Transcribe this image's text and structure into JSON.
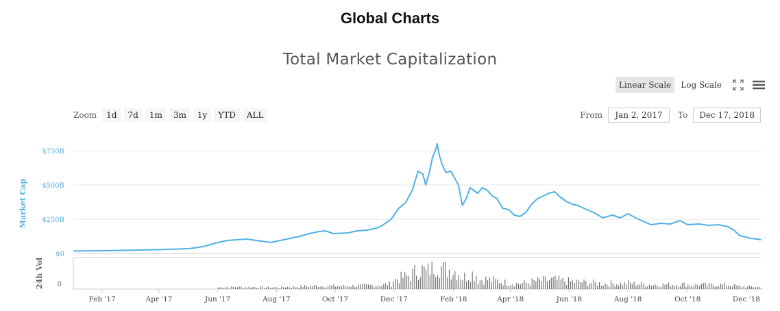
{
  "page": {
    "title": "Global Charts"
  },
  "controls": {
    "scale_buttons": [
      "Linear Scale",
      "Log Scale"
    ],
    "zoom_label": "Zoom",
    "zoom_buttons": [
      "1d",
      "7d",
      "1m",
      "3m",
      "1y",
      "YTD",
      "ALL"
    ],
    "from_label": "From",
    "from_value": "Jan 2, 2017",
    "to_label": "To",
    "to_value": "Dec 17, 2018"
  },
  "colors": {
    "series": "#4fb0e4",
    "volume": "#666666",
    "grid": "#e6e6e6"
  },
  "chart_data": {
    "type": "line",
    "title": "Total Market Capitalization",
    "ylabel": "Market Cap",
    "y_ticks": [
      "$750B",
      "$500B",
      "$250B",
      "$0"
    ],
    "y_tick_values": [
      750,
      500,
      250,
      0
    ],
    "ylim": [
      0,
      850
    ],
    "x_ticks": [
      "Feb '17",
      "Apr '17",
      "Jun '17",
      "Aug '17",
      "Oct '17",
      "Dec '17",
      "Feb '18",
      "Apr '18",
      "Jun '18",
      "Aug '18",
      "Oct '18",
      "Dec '18"
    ],
    "x_tick_days": [
      30,
      89,
      150,
      211,
      272,
      333,
      395,
      454,
      515,
      576,
      638,
      699
    ],
    "series": [
      {
        "values_unit": "billion USD",
        "points": [
          [
            0,
            18
          ],
          [
            30,
            20
          ],
          [
            60,
            24
          ],
          [
            90,
            28
          ],
          [
            120,
            35
          ],
          [
            135,
            50
          ],
          [
            150,
            80
          ],
          [
            160,
            95
          ],
          [
            170,
            100
          ],
          [
            180,
            105
          ],
          [
            195,
            90
          ],
          [
            205,
            80
          ],
          [
            215,
            95
          ],
          [
            225,
            110
          ],
          [
            235,
            125
          ],
          [
            245,
            145
          ],
          [
            255,
            160
          ],
          [
            262,
            165
          ],
          [
            270,
            145
          ],
          [
            285,
            150
          ],
          [
            295,
            165
          ],
          [
            305,
            170
          ],
          [
            315,
            185
          ],
          [
            320,
            200
          ],
          [
            330,
            250
          ],
          [
            338,
            330
          ],
          [
            345,
            370
          ],
          [
            352,
            460
          ],
          [
            358,
            600
          ],
          [
            363,
            580
          ],
          [
            366,
            500
          ],
          [
            370,
            600
          ],
          [
            373,
            700
          ],
          [
            376,
            750
          ],
          [
            378,
            800
          ],
          [
            380,
            720
          ],
          [
            383,
            650
          ],
          [
            387,
            590
          ],
          [
            392,
            600
          ],
          [
            396,
            550
          ],
          [
            400,
            500
          ],
          [
            404,
            350
          ],
          [
            408,
            400
          ],
          [
            412,
            480
          ],
          [
            416,
            460
          ],
          [
            420,
            440
          ],
          [
            425,
            480
          ],
          [
            430,
            460
          ],
          [
            435,
            420
          ],
          [
            440,
            400
          ],
          [
            446,
            330
          ],
          [
            452,
            320
          ],
          [
            458,
            280
          ],
          [
            464,
            270
          ],
          [
            470,
            300
          ],
          [
            476,
            360
          ],
          [
            482,
            400
          ],
          [
            488,
            420
          ],
          [
            494,
            440
          ],
          [
            500,
            450
          ],
          [
            506,
            410
          ],
          [
            512,
            380
          ],
          [
            518,
            360
          ],
          [
            524,
            350
          ],
          [
            530,
            330
          ],
          [
            540,
            300
          ],
          [
            550,
            260
          ],
          [
            560,
            280
          ],
          [
            568,
            260
          ],
          [
            576,
            290
          ],
          [
            584,
            260
          ],
          [
            590,
            240
          ],
          [
            600,
            210
          ],
          [
            610,
            220
          ],
          [
            620,
            215
          ],
          [
            630,
            240
          ],
          [
            638,
            210
          ],
          [
            650,
            215
          ],
          [
            660,
            205
          ],
          [
            670,
            210
          ],
          [
            680,
            195
          ],
          [
            686,
            170
          ],
          [
            692,
            130
          ],
          [
            698,
            120
          ],
          [
            704,
            110
          ],
          [
            710,
            105
          ],
          [
            714,
            100
          ]
        ]
      }
    ],
    "volume": {
      "label": "24h Vol",
      "y_ticks": [
        "0"
      ]
    }
  }
}
